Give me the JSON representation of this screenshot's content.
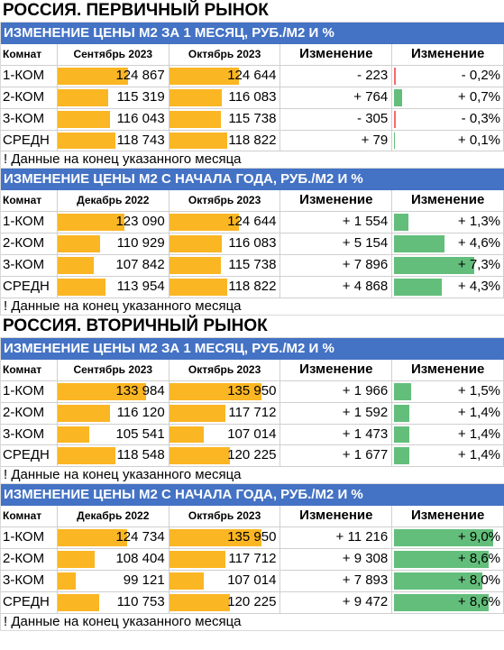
{
  "colors": {
    "header_bg": "#4472c4",
    "price_bar": "#fbb623",
    "positive_bar": "#63be7b",
    "negative_bar": "#f8696b"
  },
  "markets": [
    {
      "title": "РОССИЯ. ПЕРВИЧНЫЙ РЫНОК",
      "blocks": [
        {
          "title": "ИЗМЕНЕНИЕ ЦЕНЫ М2 ЗА 1 МЕСЯЦ, РУБ./М2 И %",
          "headers": [
            "Комнат",
            "Сентябрь 2023",
            "Октябрь 2023",
            "Изменение",
            "Изменение"
          ],
          "rows": [
            {
              "label": "1-КОМ",
              "p1": "124 867",
              "p2": "124 644",
              "change": "- 223",
              "pct": "- 0,2%",
              "pct_value": -0.2
            },
            {
              "label": "2-КОМ",
              "p1": "115 319",
              "p2": "116 083",
              "change": "+ 764",
              "pct": "+ 0,7%",
              "pct_value": 0.7
            },
            {
              "label": "3-КОМ",
              "p1": "116 043",
              "p2": "115 738",
              "change": "- 305",
              "pct": "- 0,3%",
              "pct_value": -0.3
            },
            {
              "label": "СРЕДН",
              "p1": "118 743",
              "p2": "118 822",
              "change": "+ 79",
              "pct": "+ 0,1%",
              "pct_value": 0.1
            }
          ],
          "note": "! Данные на конец указанного месяца"
        },
        {
          "title": "ИЗМЕНЕНИЕ ЦЕНЫ М2 С НАЧАЛА ГОДА, РУБ./М2 И %",
          "headers": [
            "Комнат",
            "Декабрь 2022",
            "Октябрь 2023",
            "Изменение",
            "Изменение"
          ],
          "rows": [
            {
              "label": "1-КОМ",
              "p1": "123 090",
              "p2": "124 644",
              "change": "+ 1 554",
              "pct": "+ 1,3%",
              "pct_value": 1.3
            },
            {
              "label": "2-КОМ",
              "p1": "110 929",
              "p2": "116 083",
              "change": "+ 5 154",
              "pct": "+ 4,6%",
              "pct_value": 4.6
            },
            {
              "label": "3-КОМ",
              "p1": "107 842",
              "p2": "115 738",
              "change": "+ 7 896",
              "pct": "+ 7,3%",
              "pct_value": 7.3
            },
            {
              "label": "СРЕДН",
              "p1": "113 954",
              "p2": "118 822",
              "change": "+ 4 868",
              "pct": "+ 4,3%",
              "pct_value": 4.3
            }
          ],
          "note": "! Данные на конец указанного месяца"
        }
      ]
    },
    {
      "title": "РОССИЯ. ВТОРИЧНЫЙ РЫНОК",
      "blocks": [
        {
          "title": "ИЗМЕНЕНИЕ ЦЕНЫ М2 ЗА 1 МЕСЯЦ, РУБ./М2 И %",
          "headers": [
            "Комнат",
            "Сентябрь 2023",
            "Октябрь 2023",
            "Изменение",
            "Изменение"
          ],
          "rows": [
            {
              "label": "1-КОМ",
              "p1": "133 984",
              "p2": "135 950",
              "change": "+ 1 966",
              "pct": "+ 1,5%",
              "pct_value": 1.5
            },
            {
              "label": "2-КОМ",
              "p1": "116 120",
              "p2": "117 712",
              "change": "+ 1 592",
              "pct": "+ 1,4%",
              "pct_value": 1.4
            },
            {
              "label": "3-КОМ",
              "p1": "105 541",
              "p2": "107 014",
              "change": "+ 1 473",
              "pct": "+ 1,4%",
              "pct_value": 1.4
            },
            {
              "label": "СРЕДН",
              "p1": "118 548",
              "p2": "120 225",
              "change": "+ 1 677",
              "pct": "+ 1,4%",
              "pct_value": 1.4
            }
          ],
          "note": "! Данные на конец указанного месяца"
        },
        {
          "title": "ИЗМЕНЕНИЕ ЦЕНЫ М2 С НАЧАЛА ГОДА, РУБ./М2 И %",
          "headers": [
            "Комнат",
            "Декабрь 2022",
            "Октябрь 2023",
            "Изменение",
            "Изменение"
          ],
          "rows": [
            {
              "label": "1-КОМ",
              "p1": "124 734",
              "p2": "135 950",
              "change": "+ 11 216",
              "pct": "+ 9,0%",
              "pct_value": 9.0
            },
            {
              "label": "2-КОМ",
              "p1": "108 404",
              "p2": "117 712",
              "change": "+ 9 308",
              "pct": "+ 8,6%",
              "pct_value": 8.6
            },
            {
              "label": "3-КОМ",
              "p1": "99 121",
              "p2": "107 014",
              "change": "+ 7 893",
              "pct": "+ 8,0%",
              "pct_value": 8.0
            },
            {
              "label": "СРЕДН",
              "p1": "110 753",
              "p2": "120 225",
              "change": "+ 9 472",
              "pct": "+ 8,6%",
              "pct_value": 8.6
            }
          ],
          "note": "! Данные на конец указанного месяца"
        }
      ]
    }
  ],
  "chart_data": {
    "type": "table",
    "tables": [
      {
        "market": "РОССИЯ. ПЕРВИЧНЫЙ РЫНОК",
        "title": "ИЗМЕНЕНИЕ ЦЕНЫ М2 ЗА 1 МЕСЯЦ, РУБ./М2 И %",
        "columns": [
          "Комнат",
          "Сентябрь 2023",
          "Октябрь 2023",
          "Изменение",
          "Изменение"
        ],
        "rows": [
          [
            "1-КОМ",
            124867,
            124644,
            -223,
            -0.2
          ],
          [
            "2-КОМ",
            115319,
            116083,
            764,
            0.7
          ],
          [
            "3-КОМ",
            116043,
            115738,
            -305,
            -0.3
          ],
          [
            "СРЕДН",
            118743,
            118822,
            79,
            0.1
          ]
        ]
      },
      {
        "market": "РОССИЯ. ПЕРВИЧНЫЙ РЫНОК",
        "title": "ИЗМЕНЕНИЕ ЦЕНЫ М2 С НАЧАЛА ГОДА, РУБ./М2 И %",
        "columns": [
          "Комнат",
          "Декабрь 2022",
          "Октябрь 2023",
          "Изменение",
          "Изменение"
        ],
        "rows": [
          [
            "1-КОМ",
            123090,
            124644,
            1554,
            1.3
          ],
          [
            "2-КОМ",
            110929,
            116083,
            5154,
            4.6
          ],
          [
            "3-КОМ",
            107842,
            115738,
            7896,
            7.3
          ],
          [
            "СРЕДН",
            113954,
            118822,
            4868,
            4.3
          ]
        ]
      },
      {
        "market": "РОССИЯ. ВТОРИЧНЫЙ РЫНОК",
        "title": "ИЗМЕНЕНИЕ ЦЕНЫ М2 ЗА 1 МЕСЯЦ, РУБ./М2 И %",
        "columns": [
          "Комнат",
          "Сентябрь 2023",
          "Октябрь 2023",
          "Изменение",
          "Изменение"
        ],
        "rows": [
          [
            "1-КОМ",
            133984,
            135950,
            1966,
            1.5
          ],
          [
            "2-КОМ",
            116120,
            117712,
            1592,
            1.4
          ],
          [
            "3-КОМ",
            105541,
            107014,
            1473,
            1.4
          ],
          [
            "СРЕДН",
            118548,
            120225,
            1677,
            1.4
          ]
        ]
      },
      {
        "market": "РОССИЯ. ВТОРИЧНЫЙ РЫНОК",
        "title": "ИЗМЕНЕНИЕ ЦЕНЫ М2 С НАЧАЛА ГОДА, РУБ./М2 И %",
        "columns": [
          "Комнат",
          "Декабрь 2022",
          "Октябрь 2023",
          "Изменение",
          "Изменение"
        ],
        "rows": [
          [
            "1-КОМ",
            124734,
            135950,
            11216,
            9.0
          ],
          [
            "2-КОМ",
            108404,
            117712,
            9308,
            8.6
          ],
          [
            "3-КОМ",
            99121,
            107014,
            7893,
            8.0
          ],
          [
            "СРЕДН",
            110753,
            120225,
            9472,
            8.6
          ]
        ]
      }
    ]
  }
}
